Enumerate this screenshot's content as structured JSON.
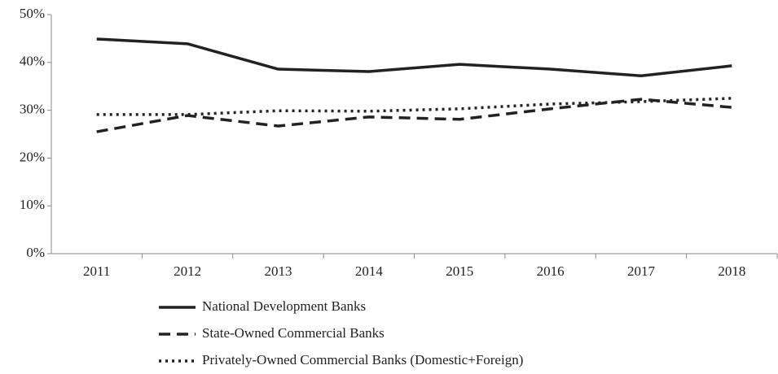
{
  "chart_data": {
    "type": "line",
    "categories": [
      "2011",
      "2012",
      "2013",
      "2014",
      "2015",
      "2016",
      "2017",
      "2018"
    ],
    "series": [
      {
        "name": "National Development Banks",
        "color": "#222222",
        "line_style": "solid",
        "values": [
          44.9,
          43.9,
          38.6,
          38.1,
          39.6,
          38.6,
          37.2,
          39.3
        ]
      },
      {
        "name": "State-Owned Commercial Banks",
        "color": "#222222",
        "line_style": "dashed",
        "values": [
          25.5,
          28.9,
          26.7,
          28.6,
          28.1,
          30.3,
          32.3,
          30.6
        ]
      },
      {
        "name": "Privately-Owned Commercial Banks (Domestic+Foreign)",
        "color": "#222222",
        "line_style": "dotted",
        "values": [
          29.1,
          29.1,
          29.9,
          29.8,
          30.3,
          31.3,
          31.8,
          32.5
        ]
      }
    ],
    "ylim": [
      0,
      50
    ],
    "yticks": [
      {
        "value": 0,
        "label": "0%"
      },
      {
        "value": 10,
        "label": "10%"
      },
      {
        "value": 20,
        "label": "20%"
      },
      {
        "value": 30,
        "label": "30%"
      },
      {
        "value": 40,
        "label": "40%"
      },
      {
        "value": 50,
        "label": "50%"
      }
    ],
    "grid": false,
    "legend": "bottom"
  }
}
